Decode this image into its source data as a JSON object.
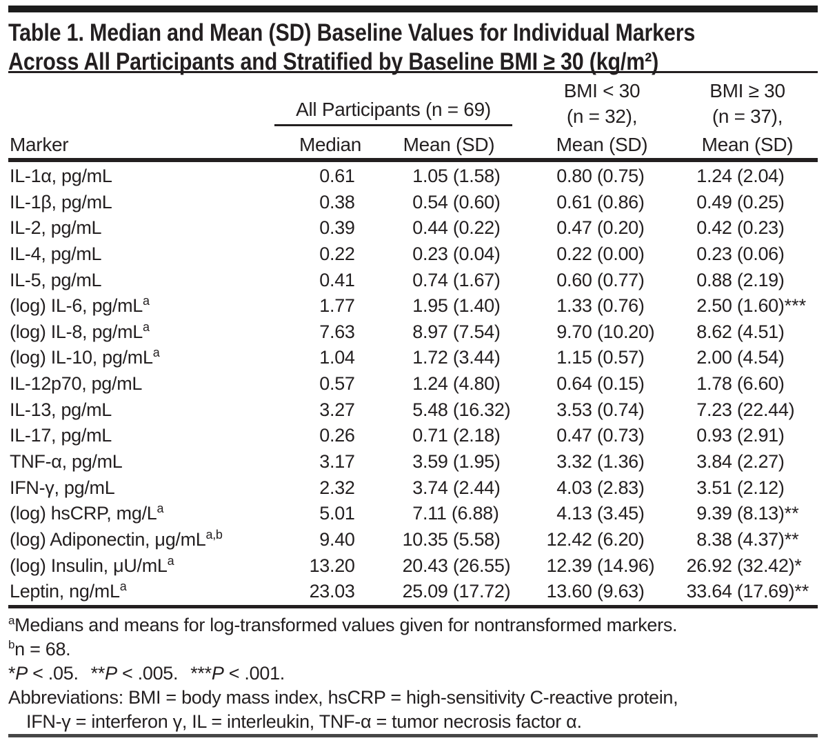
{
  "title": {
    "line1": "Table 1. Median and Mean (SD) Baseline Values for Individual Markers",
    "line2": "Across All Participants and Stratified by Baseline BMI ≥ 30 (kg/m²)"
  },
  "table": {
    "col_headers": {
      "marker": "Marker",
      "all_participants": "All Participants (n = 69)",
      "median": "Median",
      "mean_sd": "Mean (SD)",
      "bmi_lt30_line1": "BMI < 30",
      "bmi_lt30_line2": "(n = 32),",
      "bmi_lt30_line3": "Mean (SD)",
      "bmi_ge30_line1": "BMI ≥ 30",
      "bmi_ge30_line2": "(n = 37),",
      "bmi_ge30_line3": "Mean (SD)"
    },
    "rows": [
      {
        "marker": "IL-1α, pg/mL",
        "sup": "",
        "median": "0.61",
        "all": "1.05 (1.58)",
        "lt30": "0.80 (0.75)",
        "ge30": "1.24 (2.04)",
        "stars": ""
      },
      {
        "marker": "IL-1β, pg/mL",
        "sup": "",
        "median": "0.38",
        "all": "0.54 (0.60)",
        "lt30": "0.61 (0.86)",
        "ge30": "0.49 (0.25)",
        "stars": ""
      },
      {
        "marker": "IL-2, pg/mL",
        "sup": "",
        "median": "0.39",
        "all": "0.44 (0.22)",
        "lt30": "0.47 (0.20)",
        "ge30": "0.42 (0.23)",
        "stars": ""
      },
      {
        "marker": "IL-4, pg/mL",
        "sup": "",
        "median": "0.22",
        "all": "0.23 (0.04)",
        "lt30": "0.22 (0.00)",
        "ge30": "0.23 (0.06)",
        "stars": ""
      },
      {
        "marker": "IL-5, pg/mL",
        "sup": "",
        "median": "0.41",
        "all": "0.74 (1.67)",
        "lt30": "0.60 (0.77)",
        "ge30": "0.88 (2.19)",
        "stars": ""
      },
      {
        "marker": "(log) IL-6, pg/mL",
        "sup": "a",
        "median": "1.77",
        "all": "1.95 (1.40)",
        "lt30": "1.33 (0.76)",
        "ge30": "2.50 (1.60)",
        "stars": "***"
      },
      {
        "marker": "(log) IL-8, pg/mL",
        "sup": "a",
        "median": "7.63",
        "all": "8.97 (7.54)",
        "lt30": "9.70 (10.20)",
        "ge30": "8.62 (4.51)",
        "stars": ""
      },
      {
        "marker": "(log) IL-10, pg/mL",
        "sup": "a",
        "median": "1.04",
        "all": "1.72 (3.44)",
        "lt30": "1.15 (0.57)",
        "ge30": "2.00 (4.54)",
        "stars": ""
      },
      {
        "marker": "IL-12p70, pg/mL",
        "sup": "",
        "median": "0.57",
        "all": "1.24 (4.80)",
        "lt30": "0.64 (0.15)",
        "ge30": "1.78 (6.60)",
        "stars": ""
      },
      {
        "marker": "IL-13, pg/mL",
        "sup": "",
        "median": "3.27",
        "all": "5.48 (16.32)",
        "lt30": "3.53 (0.74)",
        "ge30": "7.23 (22.44)",
        "stars": ""
      },
      {
        "marker": "IL-17, pg/mL",
        "sup": "",
        "median": "0.26",
        "all": "0.71 (2.18)",
        "lt30": "0.47 (0.73)",
        "ge30": "0.93 (2.91)",
        "stars": ""
      },
      {
        "marker": "TNF-α, pg/mL",
        "sup": "",
        "median": "3.17",
        "all": "3.59 (1.95)",
        "lt30": "3.32 (1.36)",
        "ge30": "3.84 (2.27)",
        "stars": ""
      },
      {
        "marker": "IFN-γ, pg/mL",
        "sup": "",
        "median": "2.32",
        "all": "3.74 (2.44)",
        "lt30": "4.03 (2.83)",
        "ge30": "3.51 (2.12)",
        "stars": ""
      },
      {
        "marker": "(log) hsCRP, mg/L",
        "sup": "a",
        "median": "5.01",
        "all": "7.11 (6.88)",
        "lt30": "4.13 (3.45)",
        "ge30": "9.39 (8.13)",
        "stars": "**"
      },
      {
        "marker": "(log) Adiponectin, μg/mL",
        "sup": "a,b",
        "median": "9.40",
        "all": "10.35 (5.58)",
        "lt30": "12.42 (6.20)",
        "ge30": "8.38 (4.37)",
        "stars": "**"
      },
      {
        "marker": "(log) Insulin, μU/mL",
        "sup": "a",
        "median": "13.20",
        "all": "20.43 (26.55)",
        "lt30": "12.39 (14.96)",
        "ge30": "26.92 (32.42)",
        "stars": "*"
      },
      {
        "marker": "Leptin, ng/mL",
        "sup": "a",
        "median": "23.03",
        "all": "25.09 (17.72)",
        "lt30": "13.60 (9.63)",
        "ge30": "33.64 (17.69)",
        "stars": "**"
      }
    ]
  },
  "footnotes": {
    "a": {
      "sup": "a",
      "text": "Medians and means for log-transformed values given for nontransformed markers."
    },
    "b": {
      "sup": "b",
      "text": "n = 68."
    },
    "significance": [
      {
        "stars": "*",
        "cond": " < .05."
      },
      {
        "stars": "**",
        "cond": " < .005."
      },
      {
        "stars": "***",
        "cond": " < .001."
      }
    ],
    "abbrev_line1": "Abbreviations: BMI = body mass index, hsCRP = high-sensitivity C-reactive protein,",
    "abbrev_line2": "IFN-γ = interferon γ, IL = interleukin, TNF-α = tumor necrosis factor α."
  },
  "colors": {
    "text": "#231f20",
    "rule": "#231f20",
    "top_bar": "#1c1c1c",
    "bottom_rule": "#474747"
  }
}
